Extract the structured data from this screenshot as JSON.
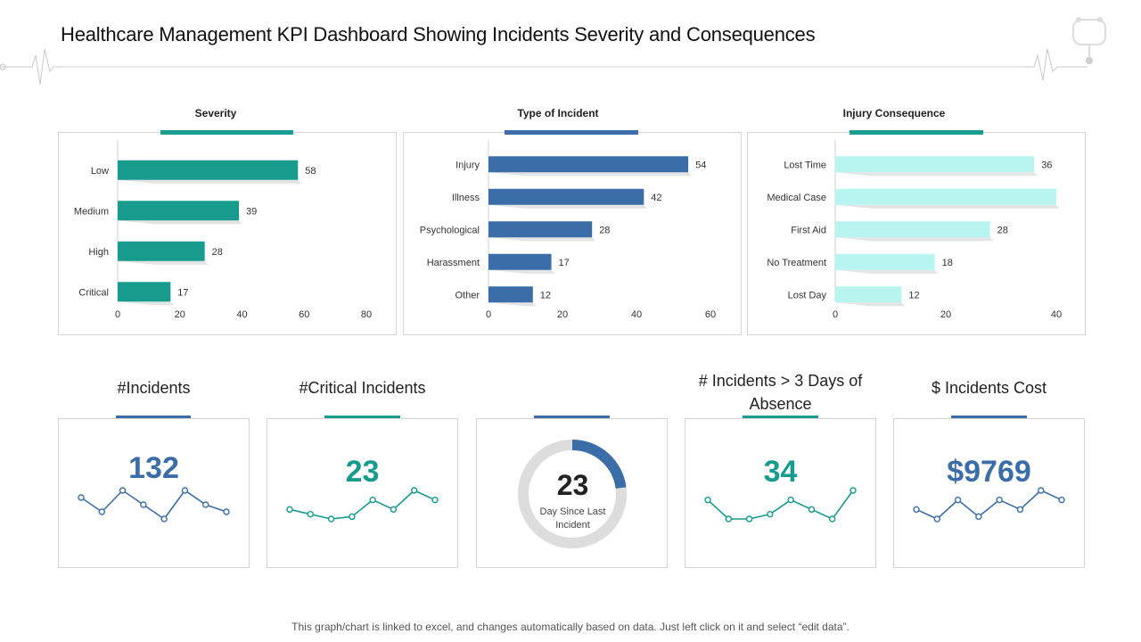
{
  "header": {
    "title": "Healthcare Management KPI Dashboard Showing Incidents Severity and Consequences"
  },
  "colors": {
    "teal": "#169b8d",
    "blue": "#3b6ea8",
    "light_cyan": "#b9f5f0",
    "accent_teal": "#1a9e8f",
    "accent_blue": "#3b6ea8",
    "gray_ring": "#dddddd"
  },
  "chart_data": [
    {
      "type": "bar",
      "orientation": "horizontal",
      "title": "Severity",
      "categories": [
        "Low",
        "Medium",
        "High",
        "Critical"
      ],
      "values": [
        58,
        39,
        28,
        17
      ],
      "xlim": [
        0,
        80
      ],
      "xticks": [
        "0",
        "20",
        "40",
        "60",
        "80"
      ],
      "color": "#169b8d",
      "data_labels": true
    },
    {
      "type": "bar",
      "orientation": "horizontal",
      "title": "Type of Incident",
      "categories": [
        "Injury",
        "Illness",
        "Psychological",
        "Harassment",
        "Other"
      ],
      "values": [
        54,
        42,
        28,
        17,
        12
      ],
      "xlim": [
        0,
        60
      ],
      "xticks": [
        "0",
        "20",
        "40",
        "60"
      ],
      "color": "#3b6ea8",
      "data_labels": true
    },
    {
      "type": "bar",
      "orientation": "horizontal",
      "title": "Injury  Consequence",
      "categories": [
        "Lost Time",
        "Medical Case",
        "First Aid",
        "No Treatment",
        "Lost Day"
      ],
      "values": [
        36,
        40,
        28,
        18,
        12
      ],
      "labels": [
        "36",
        "",
        "28",
        "18",
        "12"
      ],
      "xlim": [
        0,
        40
      ],
      "xticks": [
        "0",
        "20",
        "40"
      ],
      "color": "#b9f5f0",
      "data_labels": true
    },
    {
      "type": "line",
      "title": "#Incidents",
      "values": [
        6,
        4,
        7,
        5,
        3,
        7,
        5,
        4
      ],
      "color": "#3b6ea8"
    },
    {
      "type": "line",
      "title": "#Critical Incidents",
      "values": [
        4,
        3,
        2,
        2.5,
        6,
        4,
        8,
        6
      ],
      "color": "#169b8d"
    },
    {
      "type": "pie",
      "subtype": "donut",
      "values": [
        23,
        77
      ],
      "colors": [
        "#3b6ea8",
        "#dddddd"
      ]
    },
    {
      "type": "line",
      "title": "# Incidents > 3 Days of Absence",
      "values": [
        5,
        3,
        3,
        3.5,
        5,
        4,
        3,
        6
      ],
      "color": "#169b8d"
    },
    {
      "type": "line",
      "title": "$ Incidents Cost",
      "values": [
        4,
        2,
        6,
        2.5,
        6,
        4,
        8,
        6
      ],
      "color": "#3b6ea8"
    }
  ],
  "kpis": [
    {
      "title": "#Incidents",
      "value": "132"
    },
    {
      "title": "#Critical Incidents",
      "value": "23"
    },
    {
      "title": "",
      "value": "23",
      "label": "Day Since Last Incident"
    },
    {
      "title": "# Incidents > 3 Days of Absence",
      "value": "34"
    },
    {
      "title": "$ Incidents Cost",
      "value": "$9769"
    }
  ],
  "footer": {
    "note": "This graph/chart is linked to excel, and changes automatically based on data. Just left click on it and select “edit data”."
  }
}
